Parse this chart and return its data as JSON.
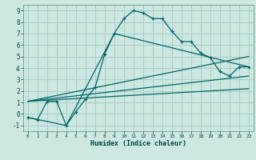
{
  "xlabel": "Humidex (Indice chaleur)",
  "background_color": "#cce8e0",
  "grid_color": "#aacccc",
  "line_color": "#006666",
  "xlim": [
    -0.5,
    23.5
  ],
  "ylim": [
    -1.5,
    9.5
  ],
  "xticks": [
    0,
    1,
    2,
    3,
    4,
    5,
    6,
    7,
    8,
    9,
    10,
    11,
    12,
    13,
    14,
    15,
    16,
    17,
    18,
    19,
    20,
    21,
    22,
    23
  ],
  "yticks": [
    -1,
    0,
    1,
    2,
    3,
    4,
    5,
    6,
    7,
    8,
    9
  ],
  "series1_x": [
    0,
    1,
    2,
    3,
    4,
    5,
    6,
    7,
    8,
    9,
    10,
    11,
    12,
    13,
    14,
    15,
    16,
    17,
    18,
    19,
    20,
    21,
    22,
    23
  ],
  "series1_y": [
    -0.3,
    -0.5,
    1.1,
    1.1,
    -1.0,
    0.2,
    1.3,
    2.3,
    5.2,
    7.0,
    8.3,
    9.0,
    8.8,
    8.3,
    8.3,
    7.2,
    6.3,
    6.3,
    5.3,
    4.9,
    3.7,
    3.3,
    4.1,
    4.1
  ],
  "series2_x": [
    0,
    4,
    9,
    23
  ],
  "series2_y": [
    -0.3,
    -1.0,
    7.0,
    4.1
  ],
  "series3_x": [
    0,
    23
  ],
  "series3_y": [
    1.1,
    5.0
  ],
  "series4_x": [
    0,
    23
  ],
  "series4_y": [
    1.1,
    2.2
  ],
  "series5_x": [
    0,
    23
  ],
  "series5_y": [
    1.1,
    3.3
  ],
  "marker": "+"
}
